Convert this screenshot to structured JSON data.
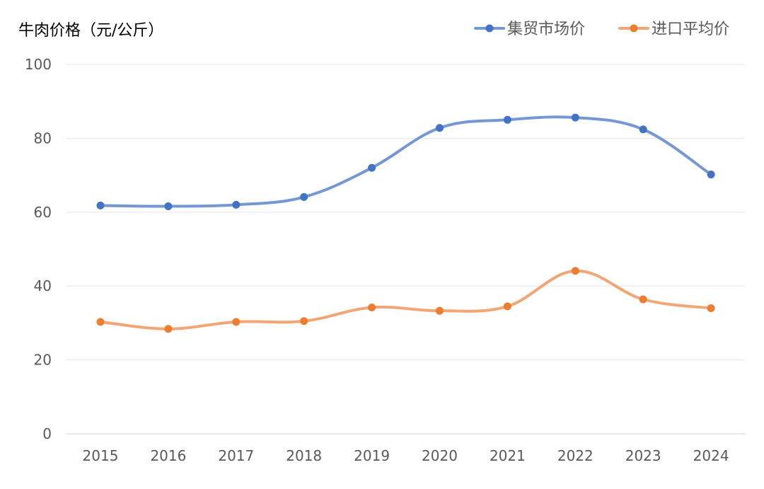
{
  "chart_data": {
    "type": "line",
    "ylabel": "牛肉价格（元/公斤）",
    "categories": [
      "2015",
      "2016",
      "2017",
      "2018",
      "2019",
      "2020",
      "2021",
      "2022",
      "2023",
      "2024"
    ],
    "ylim": [
      0,
      100
    ],
    "yticks": [
      0,
      20,
      40,
      60,
      80,
      100
    ],
    "grid": true,
    "legend_position": "top-right",
    "smooth": true,
    "series": [
      {
        "name": "集贸市场价",
        "color": "#4472C4",
        "line_color": "#7597D3",
        "values": [
          61.8,
          61.6,
          62.0,
          64.1,
          72.0,
          82.8,
          85.0,
          85.6,
          82.4,
          70.2
        ]
      },
      {
        "name": "进口平均价",
        "color": "#ED7D31",
        "line_color": "#F2A675",
        "values": [
          30.3,
          28.4,
          30.3,
          30.5,
          34.2,
          33.3,
          34.5,
          44.1,
          36.4,
          34.0
        ]
      }
    ]
  }
}
